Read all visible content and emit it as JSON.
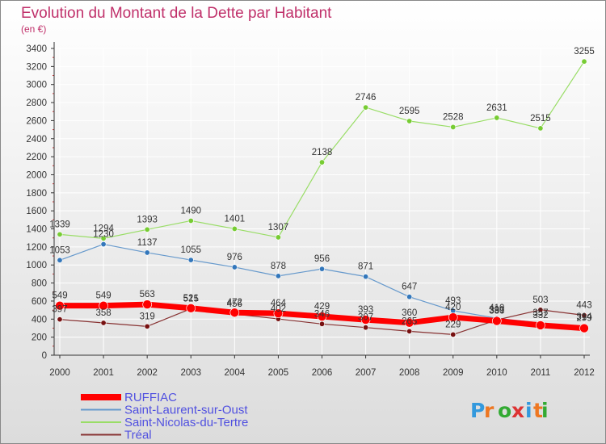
{
  "title": "Evolution du Montant de la Dette par Habitant",
  "unit_label": "(en €)",
  "logo_text": "Proxiti",
  "colors": {
    "background_top": "#ffffff",
    "background_bottom": "#dcdcdc",
    "title": "#c0306a",
    "legend_text": "#5050e0",
    "axis": "#333333",
    "grid": "#ffffff"
  },
  "chart_data": {
    "type": "line",
    "title": "Evolution du Montant de la Dette par Habitant",
    "ylabel": "(en €)",
    "xlabel": "",
    "ylim": [
      0,
      3400
    ],
    "yticks": [
      0,
      200,
      400,
      600,
      800,
      1000,
      1200,
      1400,
      1600,
      1800,
      2000,
      2200,
      2400,
      2600,
      2800,
      3000,
      3200,
      3400
    ],
    "categories": [
      "2000",
      "2001",
      "2002",
      "2003",
      "2004",
      "2005",
      "2006",
      "2007",
      "2008",
      "2009",
      "2010",
      "2011",
      "2012"
    ],
    "grid": true,
    "legend_position": "bottom-left",
    "series": [
      {
        "name": "Saint-Nicolas-du-Tertre",
        "color": "#99dd66",
        "marker": "#77cc33",
        "width": 1.2,
        "values": [
          1339,
          1294,
          1393,
          1490,
          1401,
          1307,
          2138,
          2746,
          2595,
          2528,
          2631,
          2515,
          3255
        ]
      },
      {
        "name": "Saint-Laurent-sur-Oust",
        "color": "#6699cc",
        "marker": "#3377bb",
        "width": 1.2,
        "values": [
          1053,
          1230,
          1137,
          1055,
          976,
          878,
          956,
          871,
          647,
          493,
          410,
          357,
          314
        ]
      },
      {
        "name": "Tréal",
        "color": "#883333",
        "marker": "#771111",
        "width": 1.2,
        "values": [
          397,
          358,
          319,
          515,
          456,
          402,
          346,
          307,
          265,
          229,
          391,
          503,
          443
        ]
      },
      {
        "name": "RUFFIAC",
        "color": "#ff0000",
        "marker": "#ff0000",
        "width": 7,
        "values": [
          549,
          549,
          563,
          521,
          472,
          464,
          429,
          393,
          360,
          420,
          380,
          332,
          299
        ]
      }
    ],
    "legend_order": [
      "RUFFIAC",
      "Saint-Laurent-sur-Oust",
      "Saint-Nicolas-du-Tertre",
      "Tréal"
    ]
  }
}
